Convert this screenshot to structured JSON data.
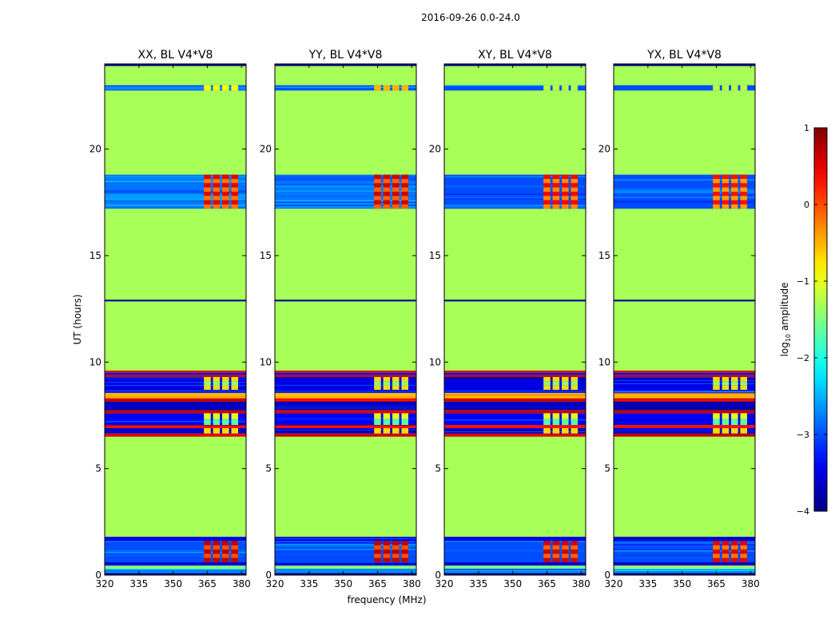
{
  "figure_title": "2016-09-26 0.0-24.0",
  "chart_data": [
    {
      "type": "heatmap",
      "title": "XX, BL V4*V8",
      "xlabel": "frequency (MHz)",
      "ylabel": "UT (hours)",
      "xlim": [
        320,
        382
      ],
      "ylim": [
        0,
        24
      ],
      "xticks": [
        320,
        335,
        350,
        365,
        380
      ],
      "yticks": [
        0,
        5,
        10,
        15,
        20
      ],
      "ytick_labels": [
        "0",
        "5",
        "10",
        "15",
        "20"
      ],
      "background_log10_amplitude": -1.3,
      "bands": [
        {
          "from": 0.0,
          "to": 0.1,
          "value": -3.9
        },
        {
          "from": 0.1,
          "to": 0.3,
          "value": -2.7
        },
        {
          "from": 0.3,
          "to": 0.45,
          "value": -1.5
        },
        {
          "from": 0.45,
          "to": 0.6,
          "value": -3.6
        },
        {
          "from": 0.6,
          "to": 1.6,
          "value": -3.0,
          "rfi": 0.4
        },
        {
          "from": 1.6,
          "to": 1.8,
          "value": -3.5
        },
        {
          "from": 6.5,
          "to": 6.65,
          "value": 0.5
        },
        {
          "from": 6.65,
          "to": 6.9,
          "value": -3.6,
          "rfi": -1.0
        },
        {
          "from": 6.9,
          "to": 7.05,
          "value": 0.3
        },
        {
          "from": 7.05,
          "to": 7.6,
          "value": -3.4,
          "rfi": -1.3
        },
        {
          "from": 7.6,
          "to": 7.75,
          "value": 0.6
        },
        {
          "from": 7.75,
          "to": 8.15,
          "value": -3.7
        },
        {
          "from": 8.15,
          "to": 8.3,
          "value": 0.4
        },
        {
          "from": 8.3,
          "to": 8.55,
          "value": -0.5
        },
        {
          "from": 8.55,
          "to": 8.7,
          "value": -3.2
        },
        {
          "from": 8.7,
          "to": 9.3,
          "value": -3.5,
          "rfi": -1.0
        },
        {
          "from": 9.3,
          "to": 9.4,
          "value": 0.6
        },
        {
          "from": 9.4,
          "to": 9.5,
          "value": -3.3
        },
        {
          "from": 9.5,
          "to": 9.6,
          "value": 0.5
        },
        {
          "from": 12.85,
          "to": 12.93,
          "value": -3.8
        },
        {
          "from": 17.2,
          "to": 18.8,
          "value": -2.8,
          "rfi": 0.2
        },
        {
          "from": 22.75,
          "to": 23.0,
          "value": -3.0,
          "rfi": -1.2
        },
        {
          "from": 23.9,
          "to": 24.0,
          "value": -3.9
        }
      ]
    },
    {
      "type": "heatmap",
      "title": "YY, BL V4*V8",
      "xlabel": "frequency (MHz)",
      "ylabel": "UT (hours)",
      "xlim": [
        320,
        382
      ],
      "ylim": [
        0,
        24
      ],
      "xticks": [
        320,
        335,
        350,
        365,
        380
      ],
      "yticks": [
        0,
        5,
        10,
        15,
        20
      ],
      "ytick_labels": [
        "0",
        "5",
        "10",
        "15",
        "20"
      ],
      "background_log10_amplitude": -1.3,
      "bands": [
        {
          "from": 0.0,
          "to": 0.1,
          "value": -3.9
        },
        {
          "from": 0.1,
          "to": 0.3,
          "value": -2.7
        },
        {
          "from": 0.3,
          "to": 0.45,
          "value": -1.5
        },
        {
          "from": 0.45,
          "to": 0.6,
          "value": -3.6
        },
        {
          "from": 0.6,
          "to": 1.6,
          "value": -3.0,
          "rfi": 0.4
        },
        {
          "from": 1.6,
          "to": 1.8,
          "value": -3.5
        },
        {
          "from": 6.5,
          "to": 6.65,
          "value": 0.5
        },
        {
          "from": 6.65,
          "to": 6.9,
          "value": -3.6,
          "rfi": -1.0
        },
        {
          "from": 6.9,
          "to": 7.05,
          "value": 0.3
        },
        {
          "from": 7.05,
          "to": 7.6,
          "value": -3.4,
          "rfi": -1.3
        },
        {
          "from": 7.6,
          "to": 7.75,
          "value": 0.6
        },
        {
          "from": 7.75,
          "to": 8.15,
          "value": -3.7
        },
        {
          "from": 8.15,
          "to": 8.3,
          "value": 0.4
        },
        {
          "from": 8.3,
          "to": 8.55,
          "value": -0.5
        },
        {
          "from": 8.55,
          "to": 8.7,
          "value": -3.2
        },
        {
          "from": 8.7,
          "to": 9.3,
          "value": -3.5,
          "rfi": -1.0
        },
        {
          "from": 9.3,
          "to": 9.4,
          "value": 0.6
        },
        {
          "from": 9.4,
          "to": 9.5,
          "value": -3.3
        },
        {
          "from": 9.5,
          "to": 9.6,
          "value": 0.5
        },
        {
          "from": 12.85,
          "to": 12.93,
          "value": -3.8
        },
        {
          "from": 17.2,
          "to": 18.8,
          "value": -2.8,
          "rfi": 0.3
        },
        {
          "from": 22.75,
          "to": 23.0,
          "value": -3.0,
          "rfi": -0.8
        },
        {
          "from": 23.9,
          "to": 24.0,
          "value": -3.9
        }
      ]
    },
    {
      "type": "heatmap",
      "title": "XY, BL V4*V8",
      "xlabel": "frequency (MHz)",
      "ylabel": "UT (hours)",
      "xlim": [
        320,
        382
      ],
      "ylim": [
        0,
        24
      ],
      "xticks": [
        320,
        335,
        350,
        365,
        380
      ],
      "yticks": [
        0,
        5,
        10,
        15,
        20
      ],
      "ytick_labels": [
        "0",
        "5",
        "10",
        "15",
        "20"
      ],
      "background_log10_amplitude": -1.3,
      "bands": [
        {
          "from": 0.0,
          "to": 0.1,
          "value": -3.9
        },
        {
          "from": 0.1,
          "to": 0.3,
          "value": -2.7
        },
        {
          "from": 0.3,
          "to": 0.45,
          "value": -1.5
        },
        {
          "from": 0.45,
          "to": 0.6,
          "value": -3.6
        },
        {
          "from": 0.6,
          "to": 1.6,
          "value": -3.0,
          "rfi": 0.3
        },
        {
          "from": 1.6,
          "to": 1.8,
          "value": -3.5
        },
        {
          "from": 6.5,
          "to": 6.65,
          "value": 0.5
        },
        {
          "from": 6.65,
          "to": 6.9,
          "value": -3.6,
          "rfi": -1.0
        },
        {
          "from": 6.9,
          "to": 7.05,
          "value": 0.3
        },
        {
          "from": 7.05,
          "to": 7.6,
          "value": -3.4,
          "rfi": -1.3
        },
        {
          "from": 7.6,
          "to": 7.75,
          "value": 0.6
        },
        {
          "from": 7.75,
          "to": 8.15,
          "value": -3.7
        },
        {
          "from": 8.15,
          "to": 8.3,
          "value": 0.4
        },
        {
          "from": 8.3,
          "to": 8.55,
          "value": -0.5
        },
        {
          "from": 8.55,
          "to": 8.7,
          "value": -3.2
        },
        {
          "from": 8.7,
          "to": 9.3,
          "value": -3.5,
          "rfi": -1.0
        },
        {
          "from": 9.3,
          "to": 9.4,
          "value": 0.6
        },
        {
          "from": 9.4,
          "to": 9.5,
          "value": -3.3
        },
        {
          "from": 9.5,
          "to": 9.6,
          "value": 0.5
        },
        {
          "from": 12.85,
          "to": 12.93,
          "value": -3.8
        },
        {
          "from": 17.2,
          "to": 18.8,
          "value": -3.0,
          "rfi": 0.1
        },
        {
          "from": 22.75,
          "to": 23.0,
          "value": -3.0,
          "rfi": -1.5
        },
        {
          "from": 23.9,
          "to": 24.0,
          "value": -3.9
        }
      ]
    },
    {
      "type": "heatmap",
      "title": "YX, BL V4*V8",
      "xlabel": "frequency (MHz)",
      "ylabel": "UT (hours)",
      "xlim": [
        320,
        382
      ],
      "ylim": [
        0,
        24
      ],
      "xticks": [
        320,
        335,
        350,
        365,
        380
      ],
      "yticks": [
        0,
        5,
        10,
        15,
        20
      ],
      "ytick_labels": [
        "0",
        "5",
        "10",
        "15",
        "20"
      ],
      "background_log10_amplitude": -1.3,
      "bands": [
        {
          "from": 0.0,
          "to": 0.1,
          "value": -3.9
        },
        {
          "from": 0.1,
          "to": 0.3,
          "value": -2.7
        },
        {
          "from": 0.3,
          "to": 0.45,
          "value": -1.5
        },
        {
          "from": 0.45,
          "to": 0.6,
          "value": -3.6
        },
        {
          "from": 0.6,
          "to": 1.6,
          "value": -3.0,
          "rfi": 0.2
        },
        {
          "from": 1.6,
          "to": 1.8,
          "value": -3.5
        },
        {
          "from": 6.5,
          "to": 6.65,
          "value": 0.5
        },
        {
          "from": 6.65,
          "to": 6.9,
          "value": -3.6,
          "rfi": -1.0
        },
        {
          "from": 6.9,
          "to": 7.05,
          "value": 0.3
        },
        {
          "from": 7.05,
          "to": 7.6,
          "value": -3.4,
          "rfi": -1.3
        },
        {
          "from": 7.6,
          "to": 7.75,
          "value": 0.6
        },
        {
          "from": 7.75,
          "to": 8.15,
          "value": -3.7
        },
        {
          "from": 8.15,
          "to": 8.3,
          "value": 0.4
        },
        {
          "from": 8.3,
          "to": 8.55,
          "value": -0.5
        },
        {
          "from": 8.55,
          "to": 8.7,
          "value": -3.2
        },
        {
          "from": 8.7,
          "to": 9.3,
          "value": -3.5,
          "rfi": -1.0
        },
        {
          "from": 9.3,
          "to": 9.4,
          "value": 0.6
        },
        {
          "from": 9.4,
          "to": 9.5,
          "value": -3.3
        },
        {
          "from": 9.5,
          "to": 9.6,
          "value": 0.5
        },
        {
          "from": 12.85,
          "to": 12.93,
          "value": -3.8
        },
        {
          "from": 17.2,
          "to": 18.8,
          "value": -3.0,
          "rfi": 0.0
        },
        {
          "from": 22.75,
          "to": 23.0,
          "value": -3.0,
          "rfi": -1.5
        },
        {
          "from": 23.9,
          "to": 24.0,
          "value": -3.9
        }
      ]
    }
  ],
  "rfi_channels_mhz": [
    [
      363.5,
      366.5
    ],
    [
      367.5,
      370.5
    ],
    [
      371.5,
      374.5
    ],
    [
      375.5,
      378.5
    ]
  ],
  "colorbar": {
    "label_prefix": "log",
    "label_subscript": "10",
    "label_suffix": " amplitude",
    "range": [
      -4,
      1
    ],
    "ticks": [
      1,
      0,
      -1,
      -2,
      -3,
      -4
    ],
    "tick_labels": [
      "1",
      "0",
      "−1",
      "−2",
      "−3",
      "−4"
    ],
    "colormap": "jet"
  },
  "shared_xlabel": "frequency (MHz)",
  "shared_ylabel": "UT (hours)",
  "colors": {
    "background_field": "#99ff5c",
    "axes_edge": "#000000"
  }
}
